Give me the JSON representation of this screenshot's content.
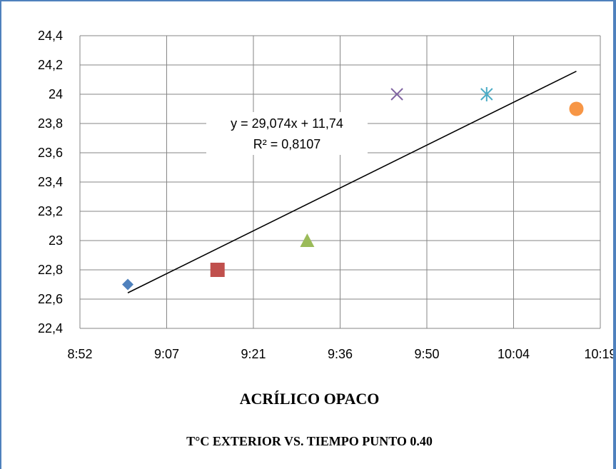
{
  "chart_data": {
    "type": "scatter",
    "x_tick_labels": [
      "8:52",
      "9:07",
      "9:21",
      "9:36",
      "9:50",
      "10:04",
      "10:19"
    ],
    "y_tick_labels": [
      "22,4",
      "22,6",
      "22,8",
      "23",
      "23,2",
      "23,4",
      "23,6",
      "23,8",
      "24",
      "24,2",
      "24,4"
    ],
    "xlim": [
      "8:52",
      "10:19"
    ],
    "ylim": [
      22.4,
      24.4
    ],
    "grid": true,
    "legend": "none",
    "points": [
      {
        "x": "9:00",
        "y": 22.7,
        "marker": "diamond",
        "color": "#4f81bd"
      },
      {
        "x": "9:15",
        "y": 22.8,
        "marker": "square",
        "color": "#c0504d"
      },
      {
        "x": "9:30",
        "y": 23.0,
        "marker": "triangle",
        "color": "#9bbb59"
      },
      {
        "x": "9:45",
        "y": 24.0,
        "marker": "x",
        "color": "#8064a2"
      },
      {
        "x": "10:00",
        "y": 24.0,
        "marker": "star",
        "color": "#4bacc6"
      },
      {
        "x": "10:15",
        "y": 23.9,
        "marker": "circle",
        "color": "#f79646"
      }
    ],
    "trendline": {
      "type": "linear",
      "x_range": [
        "9:00",
        "10:15"
      ],
      "slope": 29.074,
      "intercept": 11.74,
      "equation": "y = 29,074x + 11,74",
      "r_squared": "R² = 0,8107",
      "color": "#000000"
    }
  },
  "caption": {
    "title": "ACRÍLICO OPACO",
    "subtitle": "T°C EXTERIOR VS. TIEMPO PUNTO 0.40"
  }
}
